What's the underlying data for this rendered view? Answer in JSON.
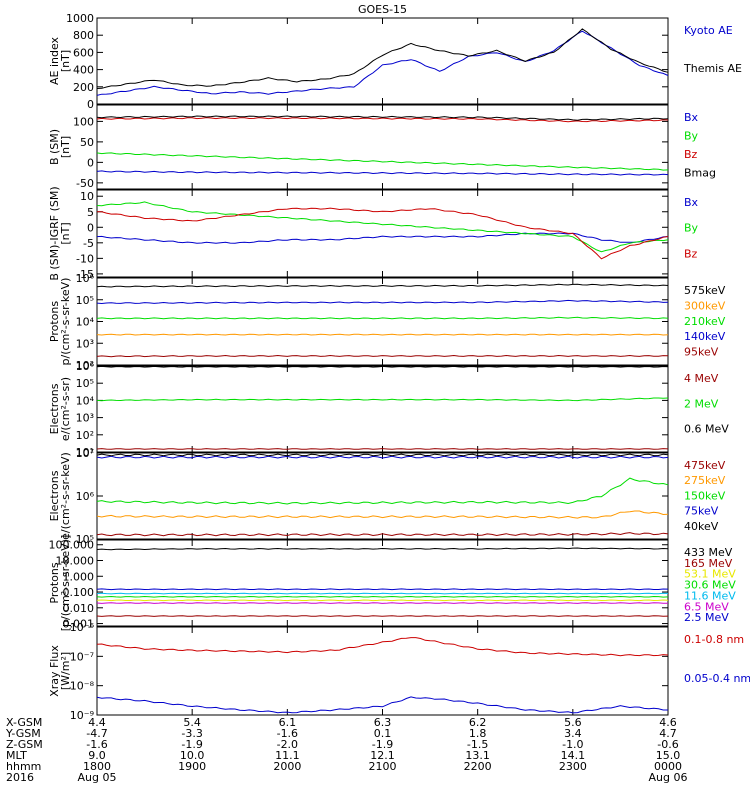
{
  "title": "GOES-15",
  "colors": {
    "black": "#000000",
    "blue": "#0000cc",
    "green": "#00dd00",
    "red": "#cc0000",
    "darkred": "#990000",
    "orange": "#ff9900",
    "yellow": "#e8e800",
    "cyan": "#00bbee",
    "magenta": "#cc00cc"
  },
  "chart_data": [
    {
      "type": "line",
      "id": "ae",
      "ylabel": [
        "AE index",
        "[nT]"
      ],
      "ylim": [
        0,
        1000
      ],
      "ytick_values": [
        0,
        200,
        400,
        600,
        800,
        1000
      ],
      "ytick_labels": [
        "0",
        "200",
        "400",
        "600",
        "800",
        "1000"
      ],
      "x": [
        0,
        0.3,
        0.6,
        0.9,
        1.2,
        1.5,
        1.8,
        2.1,
        2.4,
        2.7,
        3.0,
        3.3,
        3.6,
        3.9,
        4.2,
        4.5,
        4.8,
        5.1,
        5.4,
        5.7,
        6.0
      ],
      "series": [
        {
          "name": "Kyoto AE",
          "color": "blue",
          "values": [
            100,
            150,
            200,
            160,
            120,
            140,
            120,
            150,
            180,
            200,
            450,
            520,
            380,
            550,
            600,
            490,
            620,
            850,
            650,
            450,
            330
          ]
        },
        {
          "name": "Themis AE",
          "color": "black",
          "values": [
            180,
            230,
            280,
            220,
            210,
            250,
            300,
            260,
            290,
            350,
            570,
            700,
            620,
            560,
            620,
            500,
            600,
            870,
            640,
            480,
            370
          ]
        }
      ]
    },
    {
      "type": "line",
      "id": "bsm",
      "ylabel": [
        "B (SM)",
        "[nT]"
      ],
      "ylim": [
        -65,
        140
      ],
      "ytick_values": [
        -50,
        0,
        50,
        100
      ],
      "ytick_labels": [
        "-50",
        "0",
        "50",
        "100"
      ],
      "x": [
        0,
        1,
        2,
        3,
        4,
        5,
        6
      ],
      "series": [
        {
          "name": "Bx",
          "color": "blue",
          "values": [
            -22,
            -24,
            -25,
            -26,
            -27,
            -29,
            -30
          ]
        },
        {
          "name": "By",
          "color": "green",
          "values": [
            23,
            16,
            9,
            2,
            -5,
            -12,
            -18
          ]
        },
        {
          "name": "Bz",
          "color": "red",
          "values": [
            106,
            108,
            108,
            107,
            106,
            100,
            103
          ]
        },
        {
          "name": "Bmag",
          "color": "black",
          "values": [
            110,
            112,
            112,
            111,
            110,
            104,
            107
          ]
        }
      ]
    },
    {
      "type": "line",
      "id": "bigrf",
      "ylabel": [
        "B (SM)-IGRF (SM)",
        "[nT]"
      ],
      "ylim": [
        -16,
        12
      ],
      "ytick_values": [
        -15,
        -10,
        -5,
        0,
        5,
        10
      ],
      "ytick_labels": [
        "-15",
        "-10",
        "-5",
        "0",
        "5",
        "10"
      ],
      "x": [
        0,
        0.5,
        1,
        1.5,
        2,
        2.5,
        3,
        3.5,
        4,
        4.5,
        5,
        5.3,
        5.6,
        6
      ],
      "series": [
        {
          "name": "Bx",
          "color": "blue",
          "values": [
            -3,
            -4,
            -5,
            -5,
            -4,
            -4,
            -3,
            -3,
            -3,
            -2,
            -2,
            -4,
            -5,
            -3
          ]
        },
        {
          "name": "By",
          "color": "green",
          "values": [
            7,
            8,
            5,
            4,
            3,
            2,
            1,
            0,
            -1,
            -2,
            -3,
            -8,
            -5,
            -4
          ]
        },
        {
          "name": "Bz",
          "color": "red",
          "values": [
            5,
            3,
            2,
            4,
            6,
            6,
            5,
            6,
            4,
            0,
            -2,
            -10,
            -6,
            -3
          ]
        }
      ]
    },
    {
      "type": "line",
      "id": "prot1",
      "ylabel": [
        "Protons",
        "p/(cm²-s-sr-keV)"
      ],
      "yscale": "log",
      "ylim": [
        100,
        1000000
      ],
      "ytick_values": [
        100,
        1000,
        10000,
        100000,
        1000000
      ],
      "ytick_labels": [
        "10²",
        "10³",
        "10⁴",
        "10⁵",
        "10⁶"
      ],
      "x": [
        0,
        1,
        2,
        3,
        4,
        5,
        6
      ],
      "series": [
        {
          "name": "575keV",
          "color": "black",
          "values": [
            400000,
            420000,
            430000,
            430000,
            440000,
            500000,
            450000
          ]
        },
        {
          "name": "300keV",
          "color": "orange",
          "values": [
            2500,
            2500,
            2500,
            2500,
            2500,
            2500,
            2500
          ]
        },
        {
          "name": "210keV",
          "color": "green",
          "values": [
            14000,
            14000,
            14000,
            14000,
            14000,
            15000,
            14000
          ]
        },
        {
          "name": "140keV",
          "color": "blue",
          "values": [
            70000,
            72000,
            75000,
            75000,
            76000,
            90000,
            78000
          ]
        },
        {
          "name": "95keV",
          "color": "darkred",
          "values": [
            250,
            260,
            260,
            260,
            260,
            260,
            260
          ]
        }
      ]
    },
    {
      "type": "line",
      "id": "elec1",
      "ylabel": [
        "Electrons",
        "e/(cm²-s-sr)"
      ],
      "yscale": "log",
      "ylim": [
        10,
        1000000
      ],
      "ytick_values": [
        10,
        100,
        1000,
        10000,
        100000,
        1000000
      ],
      "ytick_labels": [
        "10¹",
        "10²",
        "10³",
        "10⁴",
        "10⁵",
        "10⁶"
      ],
      "x": [
        0,
        1,
        2,
        3,
        4,
        5,
        6
      ],
      "series": [
        {
          "name": "4 MeV",
          "color": "darkred",
          "values": [
            15,
            15,
            15,
            15,
            15,
            15,
            15
          ]
        },
        {
          "name": "2 MeV",
          "color": "green",
          "values": [
            10000,
            11000,
            11000,
            11000,
            11000,
            10000,
            14000
          ]
        },
        {
          "name": "0.6 MeV",
          "color": "black",
          "values": [
            900000,
            900000,
            900000,
            900000,
            900000,
            900000,
            900000
          ]
        }
      ]
    },
    {
      "type": "line",
      "id": "elec2",
      "ylabel": [
        "Electrons",
        "e/(cm²-s-sr-keV)"
      ],
      "yscale": "log",
      "ylim": [
        100000,
        10000000
      ],
      "ytick_values": [
        100000,
        1000000,
        10000000
      ],
      "ytick_labels": [
        "10⁵",
        "10⁶",
        "10⁷"
      ],
      "x": [
        0,
        1,
        2,
        3,
        4,
        5,
        5.3,
        5.6,
        6
      ],
      "series": [
        {
          "name": "475keV",
          "color": "darkred",
          "values": [
            125000,
            125000,
            126000,
            126000,
            126000,
            128000,
            130000,
            135000,
            130000
          ]
        },
        {
          "name": "275keV",
          "color": "orange",
          "values": [
            340000,
            330000,
            330000,
            330000,
            330000,
            320000,
            320000,
            450000,
            380000
          ]
        },
        {
          "name": "150keV",
          "color": "green",
          "values": [
            750000,
            700000,
            680000,
            700000,
            720000,
            700000,
            1000000,
            2500000,
            1800000
          ]
        },
        {
          "name": "75keV",
          "color": "blue",
          "values": [
            8000000,
            8000000,
            8000000,
            8000000,
            8000000,
            8000000,
            8000000,
            8000000,
            8000000
          ]
        },
        {
          "name": "40keV",
          "color": "black",
          "values": [
            9000000,
            9000000,
            9000000,
            9000000,
            9000000,
            9000000,
            9000000,
            9000000,
            9000000
          ]
        }
      ]
    },
    {
      "type": "line",
      "id": "prot2",
      "ylabel": [
        "Protons",
        "[p/(cm²-s-sr-keV)]"
      ],
      "yscale": "log",
      "ylim": [
        0.0007,
        200
      ],
      "ytick_values": [
        0.001,
        0.01,
        0.1,
        1,
        10,
        100
      ],
      "ytick_labels": [
        "0.001",
        "0.010",
        "0.100",
        "1.000",
        "10.000",
        "100.000"
      ],
      "x": [
        0,
        1,
        2,
        3,
        4,
        5,
        6
      ],
      "series": [
        {
          "name": "433 MeV",
          "color": "black",
          "values": [
            50,
            55,
            55,
            55,
            55,
            60,
            55
          ]
        },
        {
          "name": "165 MeV",
          "color": "darkred",
          "values": [
            0.003,
            0.003,
            0.003,
            0.003,
            0.003,
            0.003,
            0.003
          ]
        },
        {
          "name": "53.1 MeV",
          "color": "yellow",
          "values": [
            0.03,
            0.03,
            0.03,
            0.03,
            0.03,
            0.03,
            0.03
          ]
        },
        {
          "name": "30.6 MeV",
          "color": "green",
          "values": [
            0.05,
            0.05,
            0.05,
            0.05,
            0.05,
            0.05,
            0.05
          ]
        },
        {
          "name": "11.6 MeV",
          "color": "cyan",
          "values": [
            0.08,
            0.08,
            0.08,
            0.08,
            0.08,
            0.08,
            0.08
          ]
        },
        {
          "name": "6.5 MeV",
          "color": "magenta",
          "values": [
            0.02,
            0.02,
            0.02,
            0.02,
            0.02,
            0.02,
            0.02
          ]
        },
        {
          "name": "2.5 MeV",
          "color": "blue",
          "values": [
            0.15,
            0.15,
            0.15,
            0.15,
            0.15,
            0.15,
            0.15
          ]
        }
      ]
    },
    {
      "type": "line",
      "id": "xray",
      "ylabel": [
        "Xray Flux",
        "[W/m²]"
      ],
      "yscale": "log",
      "ylim": [
        1e-09,
        1e-06
      ],
      "ytick_values": [
        1e-09,
        1e-08,
        1e-07,
        1e-06
      ],
      "ytick_labels": [
        "10⁻⁹",
        "10⁻⁸",
        "10⁻⁷",
        "10⁻⁶"
      ],
      "x": [
        0,
        0.5,
        1,
        1.5,
        2,
        2.5,
        3,
        3.3,
        3.6,
        4,
        4.5,
        5,
        5.5,
        6
      ],
      "series": [
        {
          "name": "0.1-0.8 nm",
          "color": "red",
          "values": [
            2.6e-07,
            1.8e-07,
            1.6e-07,
            1.5e-07,
            1.4e-07,
            1.6e-07,
            3e-07,
            4.5e-07,
            3e-07,
            1.8e-07,
            1.3e-07,
            1.2e-07,
            1.1e-07,
            1.1e-07
          ]
        },
        {
          "name": "0.05-0.4 nm",
          "color": "blue",
          "values": [
            4e-09,
            3e-09,
            2e-09,
            1.5e-09,
            1.2e-09,
            1.5e-09,
            2e-09,
            4e-09,
            3.5e-09,
            2.5e-09,
            1.5e-09,
            1.2e-09,
            2e-09,
            1.5e-09
          ]
        }
      ]
    }
  ],
  "ephem": {
    "row_labels": [
      "X-GSM",
      "Y-GSM",
      "Z-GSM",
      "MLT",
      "hhmm",
      "2016"
    ],
    "columns": [
      {
        "values": [
          "4.4",
          "-4.7",
          "-1.6",
          "9.0",
          "1800",
          "Aug 05"
        ]
      },
      {
        "values": [
          "5.4",
          "-3.3",
          "-1.9",
          "10.0",
          "1900",
          ""
        ]
      },
      {
        "values": [
          "6.1",
          "-1.6",
          "-2.0",
          "11.1",
          "2000",
          ""
        ]
      },
      {
        "values": [
          "6.3",
          "0.1",
          "-1.9",
          "12.1",
          "2100",
          ""
        ]
      },
      {
        "values": [
          "6.2",
          "1.8",
          "-1.5",
          "13.1",
          "2200",
          ""
        ]
      },
      {
        "values": [
          "5.6",
          "3.4",
          "-1.0",
          "14.1",
          "2300",
          ""
        ]
      },
      {
        "values": [
          "4.6",
          "4.7",
          "-0.6",
          "15.0",
          "0000",
          "Aug 06"
        ]
      }
    ]
  }
}
